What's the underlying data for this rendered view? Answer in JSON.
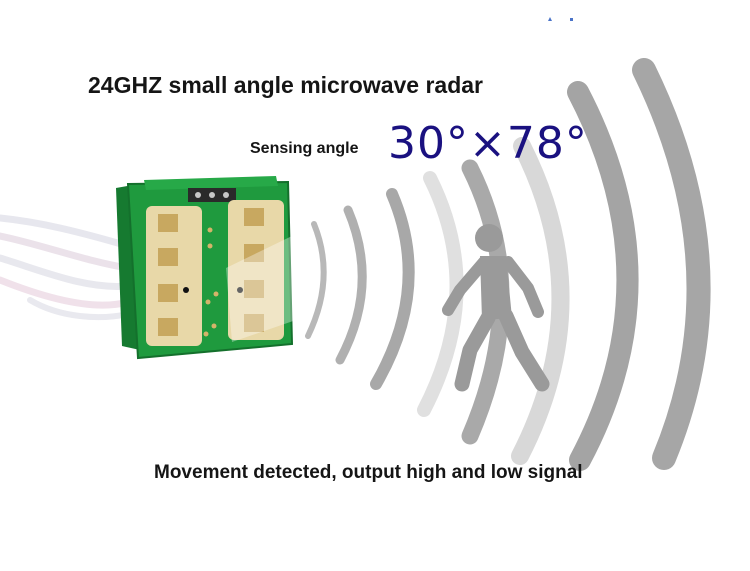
{
  "title": "24GHZ small angle microwave radar",
  "sensing": {
    "label": "Sensing angle",
    "value": "30°×78°"
  },
  "caption": "Movement detected, output high and low signal",
  "icons": {
    "module": "radar-module-pcb",
    "waves": "microwave-arc-waves",
    "person": "walking-person-silhouette"
  },
  "colors": {
    "text": "#151515",
    "angle_value": "#1a1180",
    "pcb": "#1f9a3e",
    "wave_gray": "#a9a9a9",
    "person_gray": "#9a9a9a"
  }
}
